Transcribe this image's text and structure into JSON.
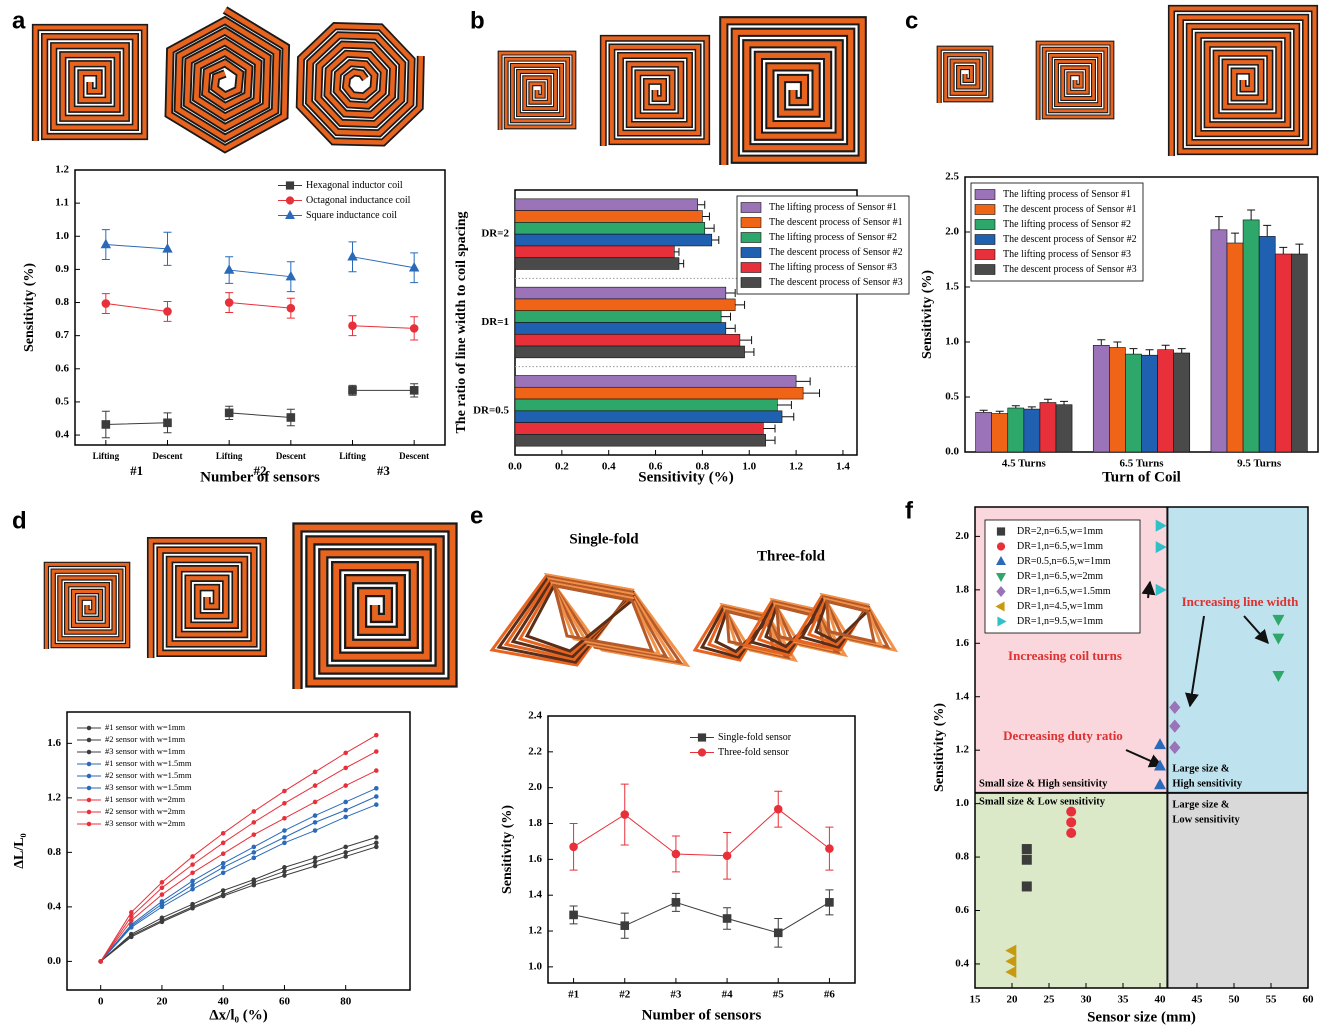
{
  "chart_data": [
    {
      "panel": "a",
      "type": "line",
      "xlabel": "Number of sensors",
      "ylabel": "Sensitivity (%)",
      "categories": [
        "Lifting",
        "Descent",
        "Lifting",
        "Descent",
        "Lifting",
        "Descent"
      ],
      "groups": [
        "#1",
        "#2",
        "#3"
      ],
      "series": [
        {
          "name": "Hexagonal inductor coil",
          "color": "#3c3c3c",
          "marker": "square",
          "values": [
            0.432,
            0.437,
            0.467,
            0.453,
            0.535,
            0.535
          ],
          "errors": [
            0.04,
            0.03,
            0.02,
            0.025,
            0.015,
            0.02
          ]
        },
        {
          "name": "Octagonal inductance coil",
          "color": "#e8303a",
          "marker": "circle",
          "values": [
            0.797,
            0.773,
            0.8,
            0.783,
            0.73,
            0.722
          ],
          "errors": [
            0.03,
            0.03,
            0.03,
            0.03,
            0.03,
            0.035
          ]
        },
        {
          "name": "Square inductance coil",
          "color": "#2a6ab8",
          "marker": "triangle-up",
          "values": [
            0.975,
            0.962,
            0.898,
            0.878,
            0.938,
            0.905
          ],
          "errors": [
            0.045,
            0.05,
            0.04,
            0.045,
            0.045,
            0.045
          ]
        }
      ],
      "ylim": [
        0.37,
        1.2
      ],
      "yticks": [
        0.4,
        0.5,
        0.6,
        0.7,
        0.8,
        0.9,
        {
          "value": 1,
          "label": "1.0"
        },
        1.1,
        1.2
      ],
      "legend": "upper right"
    },
    {
      "panel": "b",
      "type": "barh",
      "xlabel": "Sensitivity (%)",
      "ylabel": "The ratio of line width to coil spacing",
      "categories": [
        "DR=2",
        "DR=1",
        "DR=0.5"
      ],
      "series": [
        {
          "name": "The lifting process of Sensor #1",
          "color": "#9b73b8",
          "values": [
            0.78,
            0.9,
            1.2
          ],
          "errors": [
            0.03,
            0.04,
            0.06
          ]
        },
        {
          "name": "The descent process of Sensor #1",
          "color": "#f06418",
          "values": [
            0.8,
            0.94,
            1.23
          ],
          "errors": [
            0.03,
            0.04,
            0.07
          ]
        },
        {
          "name": "The lifting process of Sensor #2",
          "color": "#2ea86a",
          "values": [
            0.81,
            0.88,
            1.12
          ],
          "errors": [
            0.04,
            0.04,
            0.06
          ]
        },
        {
          "name": "The descent process of Sensor #2",
          "color": "#2060b0",
          "values": [
            0.84,
            0.9,
            1.14
          ],
          "errors": [
            0.03,
            0.04,
            0.05
          ]
        },
        {
          "name": "The lifting process of Sensor #3",
          "color": "#e8303a",
          "values": [
            0.68,
            0.96,
            1.06
          ],
          "errors": [
            0.02,
            0.05,
            0.05
          ]
        },
        {
          "name": "The descent process of Sensor #3",
          "color": "#4a4a4a",
          "values": [
            0.7,
            0.98,
            1.07
          ],
          "errors": [
            0.02,
            0.04,
            0.04
          ]
        }
      ],
      "xlim": [
        0,
        1.46
      ],
      "xticks": [
        {
          "value": 0,
          "label": "0.0"
        },
        0.2,
        0.4,
        0.6,
        0.8,
        {
          "value": 1,
          "label": "1.0"
        },
        1.2,
        1.4
      ],
      "legend": "upper right"
    },
    {
      "panel": "c",
      "type": "bar",
      "xlabel": "Turn of Coil",
      "ylabel": "Sensitivity (%)",
      "categories": [
        "4.5 Turns",
        "6.5 Turns",
        "9.5 Turns"
      ],
      "series": [
        {
          "name": "The lifting process of Sensor #1",
          "color": "#9b73b8",
          "values": [
            0.36,
            0.97,
            2.02
          ],
          "errors": [
            0.02,
            0.05,
            0.12
          ]
        },
        {
          "name": "The descent process of Sensor #1",
          "color": "#f06418",
          "values": [
            0.35,
            0.95,
            1.9
          ],
          "errors": [
            0.02,
            0.05,
            0.09
          ]
        },
        {
          "name": "The lifting process of Sensor #2",
          "color": "#2ea86a",
          "values": [
            0.4,
            0.89,
            2.11
          ],
          "errors": [
            0.02,
            0.05,
            0.09
          ]
        },
        {
          "name": "The descent process of Sensor #2",
          "color": "#2060b0",
          "values": [
            0.39,
            0.88,
            1.96
          ],
          "errors": [
            0.02,
            0.05,
            0.1
          ]
        },
        {
          "name": "The lifting process of Sensor #3",
          "color": "#e8303a",
          "values": [
            0.45,
            0.93,
            1.8
          ],
          "errors": [
            0.03,
            0.04,
            0.06
          ]
        },
        {
          "name": "The descent process of Sensor #3",
          "color": "#4a4a4a",
          "values": [
            0.43,
            0.9,
            1.8
          ],
          "errors": [
            0.03,
            0.04,
            0.09
          ]
        }
      ],
      "ylim": [
        0,
        2.5
      ],
      "yticks": [
        {
          "value": 0,
          "label": "0.0"
        },
        0.5,
        {
          "value": 1,
          "label": "1.0"
        },
        1.5,
        {
          "value": 2,
          "label": "2.0"
        },
        2.5
      ],
      "legend": "upper left"
    },
    {
      "panel": "d",
      "type": "line",
      "xlabel": "Δx/l₀ (%)",
      "ylabel": "ΔL/L₀",
      "x": [
        0,
        10,
        20,
        30,
        40,
        50,
        60,
        70,
        80,
        90
      ],
      "series": [
        {
          "name": "#1 sensor with w=1mm",
          "color": "#3c3c3c",
          "values": [
            0,
            0.2,
            0.32,
            0.42,
            0.52,
            0.6,
            0.69,
            0.76,
            0.84,
            0.91
          ]
        },
        {
          "name": "#2 sensor with w=1mm",
          "color": "#3c3c3c",
          "values": [
            0,
            0.19,
            0.3,
            0.4,
            0.49,
            0.58,
            0.66,
            0.73,
            0.8,
            0.87
          ]
        },
        {
          "name": "#3 sensor with w=1mm",
          "color": "#3c3c3c",
          "values": [
            0,
            0.18,
            0.29,
            0.39,
            0.48,
            0.56,
            0.63,
            0.7,
            0.77,
            0.84
          ]
        },
        {
          "name": "#1 sensor with w=1.5mm",
          "color": "#2a6ab8",
          "values": [
            0,
            0.27,
            0.44,
            0.59,
            0.72,
            0.84,
            0.96,
            1.07,
            1.17,
            1.27
          ]
        },
        {
          "name": "#2 sensor with w=1.5mm",
          "color": "#2a6ab8",
          "values": [
            0,
            0.26,
            0.42,
            0.56,
            0.69,
            0.8,
            0.91,
            1.02,
            1.11,
            1.21
          ]
        },
        {
          "name": "#3 sensor with w=1.5mm",
          "color": "#2a6ab8",
          "values": [
            0,
            0.25,
            0.4,
            0.53,
            0.65,
            0.76,
            0.87,
            0.96,
            1.06,
            1.15
          ]
        },
        {
          "name": "#1 sensor with w=2mm",
          "color": "#e8303a",
          "values": [
            0,
            0.36,
            0.58,
            0.77,
            0.94,
            1.1,
            1.25,
            1.39,
            1.53,
            1.66
          ]
        },
        {
          "name": "#2 sensor with w=2mm",
          "color": "#e8303a",
          "values": [
            0,
            0.33,
            0.54,
            0.71,
            0.87,
            1.02,
            1.16,
            1.29,
            1.42,
            1.54
          ]
        },
        {
          "name": "#3 sensor with w=2mm",
          "color": "#e8303a",
          "values": [
            0,
            0.3,
            0.49,
            0.65,
            0.79,
            0.93,
            1.05,
            1.17,
            1.29,
            1.4
          ]
        }
      ],
      "xlim": [
        -11,
        101
      ],
      "xticks": [
        0,
        20,
        40,
        60,
        80
      ],
      "ylim": [
        -0.21,
        1.83
      ],
      "yticks": [
        {
          "value": 0,
          "label": "0.0"
        },
        0.4,
        0.8,
        1.2,
        1.6
      ],
      "legend": "upper left"
    },
    {
      "panel": "e",
      "type": "line",
      "xlabel": "Number of sensors",
      "ylabel": "Sensitivity (%)",
      "image_labels": [
        "Single-fold",
        "Three-fold"
      ],
      "categories": [
        "#1",
        "#2",
        "#3",
        "#4",
        "#5",
        "#6"
      ],
      "series": [
        {
          "name": "Single-fold sensor",
          "color": "#3c3c3c",
          "marker": "square",
          "values": [
            1.29,
            1.23,
            1.36,
            1.27,
            1.19,
            1.36
          ],
          "errors": [
            0.05,
            0.07,
            0.05,
            0.06,
            0.08,
            0.07
          ]
        },
        {
          "name": "Three-fold sensor",
          "color": "#e8303a",
          "marker": "circle",
          "values": [
            1.67,
            1.85,
            1.63,
            1.62,
            1.88,
            1.66
          ],
          "errors": [
            0.13,
            0.17,
            0.1,
            0.13,
            0.1,
            0.12
          ]
        }
      ],
      "ylim": [
        0.91,
        2.4
      ],
      "yticks": [
        {
          "value": 1,
          "label": "1.0"
        },
        1.2,
        1.4,
        1.6,
        1.8,
        {
          "value": 2,
          "label": "2.0"
        },
        2.2,
        2.4
      ],
      "legend": "upper right"
    },
    {
      "panel": "f",
      "type": "scatter",
      "xlabel": "Sensor size (mm)",
      "ylabel": "Sensitivity (%)",
      "series": [
        {
          "name": "DR=2,n=6.5,w=1mm",
          "color": "#3c3c3c",
          "marker": "square",
          "x": [
            22,
            22,
            22
          ],
          "values": [
            0.83,
            0.79,
            0.69
          ]
        },
        {
          "name": "DR=1,n=6.5,w=1mm",
          "color": "#e8303a",
          "marker": "circle",
          "x": [
            28,
            28,
            28
          ],
          "values": [
            0.97,
            0.93,
            0.89
          ]
        },
        {
          "name": "DR=0.5,n=6.5,w=1mm",
          "color": "#2a6ab8",
          "marker": "triangle-up",
          "x": [
            40,
            40,
            40
          ],
          "values": [
            1.22,
            1.14,
            1.07
          ]
        },
        {
          "name": "DR=1,n=6.5,w=2mm",
          "color": "#2ea86a",
          "marker": "triangle-down",
          "x": [
            56,
            56,
            56
          ],
          "values": [
            1.69,
            1.62,
            1.48
          ]
        },
        {
          "name": "DR=1,n=6.5,w=1.5mm",
          "color": "#9b73b8",
          "marker": "diamond",
          "x": [
            42,
            42,
            42
          ],
          "values": [
            1.36,
            1.29,
            1.21
          ]
        },
        {
          "name": "DR=1,n=4.5,w=1mm",
          "color": "#c89a10",
          "marker": "triangle-left",
          "x": [
            20,
            20,
            20
          ],
          "values": [
            0.45,
            0.41,
            0.37
          ]
        },
        {
          "name": "DR=1,n=9.5,w=1mm",
          "color": "#30c0c8",
          "marker": "triangle-right",
          "x": [
            40,
            40,
            40
          ],
          "values": [
            2.04,
            1.96,
            1.8
          ]
        }
      ],
      "xlim": [
        15,
        60
      ],
      "xticks": [
        15,
        20,
        25,
        30,
        35,
        40,
        45,
        50,
        55,
        60
      ],
      "ylim": [
        0.31,
        2.11
      ],
      "yticks": [
        0.4,
        0.6,
        0.8,
        {
          "value": 1,
          "label": "1.0"
        },
        1.2,
        1.4,
        1.6,
        1.8,
        {
          "value": 2,
          "label": "2.0"
        }
      ],
      "divider": {
        "x": 41,
        "y": 1.04
      },
      "region_colors": [
        "#f9d7dc",
        "#bfe3ee",
        "#dbe9c8",
        "#d9d9d9"
      ],
      "quadrant_labels": [
        [
          "Small size & High sensitivity"
        ],
        [
          "Large size &",
          "High sensitivity"
        ],
        [
          "Small size & Low sensitivity"
        ],
        [
          "Large size &",
          "Low sensitivity"
        ]
      ],
      "annotations": [
        "Increasing coil turns",
        "Increasing line width",
        "Decreasing duty ratio"
      ],
      "legend": "upper left"
    }
  ]
}
